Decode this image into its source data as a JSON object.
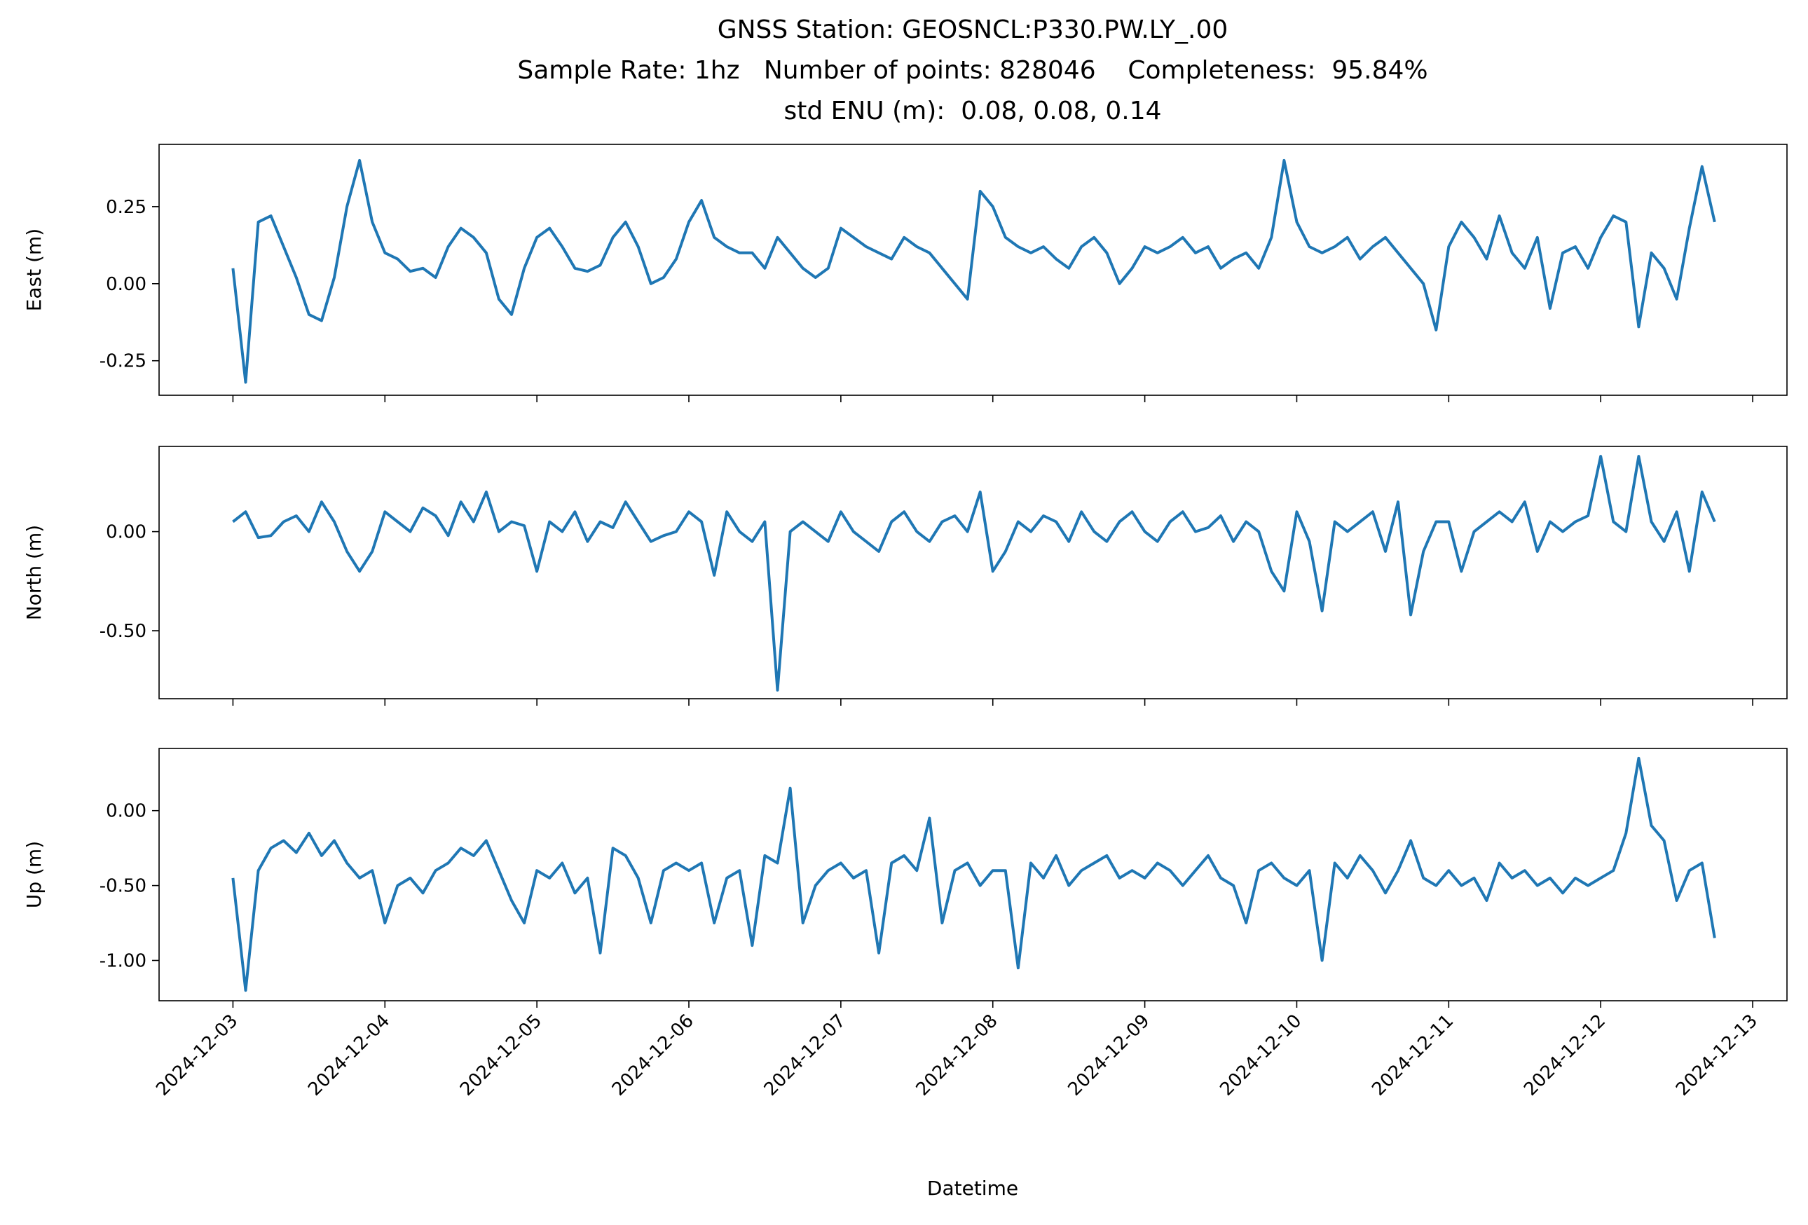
{
  "chart_data": {
    "type": "line",
    "title": [
      "GNSS Station: GEOSNCL:P330.PW.LY_.00",
      "Sample Rate: 1hz   Number of points: 828046    Completeness:  95.84%",
      "std ENU (m):  0.08, 0.08, 0.14"
    ],
    "xlabel": "Datetime",
    "xlim": [
      "2024-12-02T12:20",
      "2024-12-13T05:25"
    ],
    "xticks": [
      "2024-12-03",
      "2024-12-04",
      "2024-12-05",
      "2024-12-06",
      "2024-12-07",
      "2024-12-08",
      "2024-12-09",
      "2024-12-10",
      "2024-12-11",
      "2024-12-12",
      "2024-12-13"
    ],
    "x": [
      "2024-12-03T00:00",
      "2024-12-03T02:00",
      "2024-12-03T04:00",
      "2024-12-03T06:00",
      "2024-12-03T08:00",
      "2024-12-03T10:00",
      "2024-12-03T12:00",
      "2024-12-03T14:00",
      "2024-12-03T16:00",
      "2024-12-03T18:00",
      "2024-12-03T20:00",
      "2024-12-03T22:00",
      "2024-12-04T00:00",
      "2024-12-04T02:00",
      "2024-12-04T04:00",
      "2024-12-04T06:00",
      "2024-12-04T08:00",
      "2024-12-04T10:00",
      "2024-12-04T12:00",
      "2024-12-04T14:00",
      "2024-12-04T16:00",
      "2024-12-04T18:00",
      "2024-12-04T20:00",
      "2024-12-04T22:00",
      "2024-12-05T00:00",
      "2024-12-05T02:00",
      "2024-12-05T04:00",
      "2024-12-05T06:00",
      "2024-12-05T08:00",
      "2024-12-05T10:00",
      "2024-12-05T12:00",
      "2024-12-05T14:00",
      "2024-12-05T16:00",
      "2024-12-05T18:00",
      "2024-12-05T20:00",
      "2024-12-05T22:00",
      "2024-12-06T00:00",
      "2024-12-06T02:00",
      "2024-12-06T04:00",
      "2024-12-06T06:00",
      "2024-12-06T08:00",
      "2024-12-06T10:00",
      "2024-12-06T12:00",
      "2024-12-06T14:00",
      "2024-12-06T16:00",
      "2024-12-06T18:00",
      "2024-12-06T20:00",
      "2024-12-06T22:00",
      "2024-12-07T00:00",
      "2024-12-07T02:00",
      "2024-12-07T04:00",
      "2024-12-07T06:00",
      "2024-12-07T08:00",
      "2024-12-07T10:00",
      "2024-12-07T12:00",
      "2024-12-07T14:00",
      "2024-12-07T16:00",
      "2024-12-07T18:00",
      "2024-12-07T20:00",
      "2024-12-07T22:00",
      "2024-12-08T00:00",
      "2024-12-08T02:00",
      "2024-12-08T04:00",
      "2024-12-08T06:00",
      "2024-12-08T08:00",
      "2024-12-08T10:00",
      "2024-12-08T12:00",
      "2024-12-08T14:00",
      "2024-12-08T16:00",
      "2024-12-08T18:00",
      "2024-12-08T20:00",
      "2024-12-08T22:00",
      "2024-12-09T00:00",
      "2024-12-09T02:00",
      "2024-12-09T04:00",
      "2024-12-09T06:00",
      "2024-12-09T08:00",
      "2024-12-09T10:00",
      "2024-12-09T12:00",
      "2024-12-09T14:00",
      "2024-12-09T16:00",
      "2024-12-09T18:00",
      "2024-12-09T20:00",
      "2024-12-09T22:00",
      "2024-12-10T00:00",
      "2024-12-10T02:00",
      "2024-12-10T04:00",
      "2024-12-10T06:00",
      "2024-12-10T08:00",
      "2024-12-10T10:00",
      "2024-12-10T12:00",
      "2024-12-10T14:00",
      "2024-12-10T16:00",
      "2024-12-10T18:00",
      "2024-12-10T20:00",
      "2024-12-10T22:00",
      "2024-12-11T00:00",
      "2024-12-11T02:00",
      "2024-12-11T04:00",
      "2024-12-11T06:00",
      "2024-12-11T08:00",
      "2024-12-11T10:00",
      "2024-12-11T12:00",
      "2024-12-11T14:00",
      "2024-12-11T16:00",
      "2024-12-11T18:00",
      "2024-12-11T20:00",
      "2024-12-11T22:00",
      "2024-12-12T00:00",
      "2024-12-12T02:00",
      "2024-12-12T04:00",
      "2024-12-12T06:00",
      "2024-12-12T08:00",
      "2024-12-12T10:00",
      "2024-12-12T12:00",
      "2024-12-12T14:00",
      "2024-12-12T16:00",
      "2024-12-12T18:00"
    ],
    "panels": [
      {
        "ylabel": "East (m)",
        "ylim": [
          -0.362,
          0.452
        ],
        "yticks": [
          {
            "value": -0.25,
            "label": "-0.25"
          },
          {
            "value": 0,
            "label": "0.00"
          },
          {
            "value": 0.25,
            "label": "0.25"
          }
        ],
        "series": [
          {
            "color": "#1f77b4",
            "values": [
              0.05,
              -0.32,
              0.2,
              0.22,
              0.12,
              0.02,
              -0.1,
              -0.12,
              0.02,
              0.25,
              0.4,
              0.2,
              0.1,
              0.08,
              0.04,
              0.05,
              0.02,
              0.12,
              0.18,
              0.15,
              0.1,
              -0.05,
              -0.1,
              0.05,
              0.15,
              0.18,
              0.12,
              0.05,
              0.04,
              0.06,
              0.15,
              0.2,
              0.12,
              0.0,
              0.02,
              0.08,
              0.2,
              0.27,
              0.15,
              0.12,
              0.1,
              0.1,
              0.05,
              0.15,
              0.1,
              0.05,
              0.02,
              0.05,
              0.18,
              0.15,
              0.12,
              0.1,
              0.08,
              0.15,
              0.12,
              0.1,
              0.05,
              0.0,
              -0.05,
              0.3,
              0.25,
              0.15,
              0.12,
              0.1,
              0.12,
              0.08,
              0.05,
              0.12,
              0.15,
              0.1,
              0.0,
              0.05,
              0.12,
              0.1,
              0.12,
              0.15,
              0.1,
              0.12,
              0.05,
              0.08,
              0.1,
              0.05,
              0.15,
              0.4,
              0.2,
              0.12,
              0.1,
              0.12,
              0.15,
              0.08,
              0.12,
              0.15,
              0.1,
              0.05,
              0.0,
              -0.15,
              0.12,
              0.2,
              0.15,
              0.08,
              0.22,
              0.1,
              0.05,
              0.15,
              -0.08,
              0.1,
              0.12,
              0.05,
              0.15,
              0.22,
              0.2,
              -0.14,
              0.1,
              0.05,
              -0.05,
              0.18,
              0.38,
              0.2
            ]
          }
        ]
      },
      {
        "ylabel": "North (m)",
        "ylim": [
          -0.843,
          0.43
        ],
        "yticks": [
          {
            "value": -0.5,
            "label": "-0.50"
          },
          {
            "value": 0,
            "label": "0.00"
          }
        ],
        "series": [
          {
            "color": "#1f77b4",
            "values": [
              0.05,
              0.1,
              -0.03,
              -0.02,
              0.05,
              0.08,
              0.0,
              0.15,
              0.05,
              -0.1,
              -0.2,
              -0.1,
              0.1,
              0.05,
              0.0,
              0.12,
              0.08,
              -0.02,
              0.15,
              0.05,
              0.2,
              0.0,
              0.05,
              0.03,
              -0.2,
              0.05,
              0.0,
              0.1,
              -0.05,
              0.05,
              0.02,
              0.15,
              0.05,
              -0.05,
              -0.02,
              0.0,
              0.1,
              0.05,
              -0.22,
              0.1,
              0.0,
              -0.05,
              0.05,
              -0.8,
              0.0,
              0.05,
              0.0,
              -0.05,
              0.1,
              0.0,
              -0.05,
              -0.1,
              0.05,
              0.1,
              0.0,
              -0.05,
              0.05,
              0.08,
              0.0,
              0.2,
              -0.2,
              -0.1,
              0.05,
              0.0,
              0.08,
              0.05,
              -0.05,
              0.1,
              0.0,
              -0.05,
              0.05,
              0.1,
              0.0,
              -0.05,
              0.05,
              0.1,
              0.0,
              0.02,
              0.08,
              -0.05,
              0.05,
              0.0,
              -0.2,
              -0.3,
              0.1,
              -0.05,
              -0.4,
              0.05,
              0.0,
              0.05,
              0.1,
              -0.1,
              0.15,
              -0.42,
              -0.1,
              0.05,
              0.05,
              -0.2,
              0.0,
              0.05,
              0.1,
              0.05,
              0.15,
              -0.1,
              0.05,
              0.0,
              0.05,
              0.08,
              0.38,
              0.05,
              0.0,
              0.38,
              0.05,
              -0.05,
              0.1,
              -0.2,
              0.2,
              0.05
            ]
          }
        ]
      },
      {
        "ylabel": "Up (m)",
        "ylim": [
          -1.269,
          0.415
        ],
        "yticks": [
          {
            "value": -1,
            "label": "-1.00"
          },
          {
            "value": -0.5,
            "label": "-0.50"
          },
          {
            "value": 0,
            "label": "0.00"
          }
        ],
        "series": [
          {
            "color": "#1f77b4",
            "values": [
              -0.45,
              -1.2,
              -0.4,
              -0.25,
              -0.2,
              -0.28,
              -0.15,
              -0.3,
              -0.2,
              -0.35,
              -0.45,
              -0.4,
              -0.75,
              -0.5,
              -0.45,
              -0.55,
              -0.4,
              -0.35,
              -0.25,
              -0.3,
              -0.2,
              -0.4,
              -0.6,
              -0.75,
              -0.4,
              -0.45,
              -0.35,
              -0.55,
              -0.45,
              -0.95,
              -0.25,
              -0.3,
              -0.45,
              -0.75,
              -0.4,
              -0.35,
              -0.4,
              -0.35,
              -0.75,
              -0.45,
              -0.4,
              -0.9,
              -0.3,
              -0.35,
              0.15,
              -0.75,
              -0.5,
              -0.4,
              -0.35,
              -0.45,
              -0.4,
              -0.95,
              -0.35,
              -0.3,
              -0.4,
              -0.05,
              -0.75,
              -0.4,
              -0.35,
              -0.5,
              -0.4,
              -0.4,
              -1.05,
              -0.35,
              -0.45,
              -0.3,
              -0.5,
              -0.4,
              -0.35,
              -0.3,
              -0.45,
              -0.4,
              -0.45,
              -0.35,
              -0.4,
              -0.5,
              -0.4,
              -0.3,
              -0.45,
              -0.5,
              -0.75,
              -0.4,
              -0.35,
              -0.45,
              -0.5,
              -0.4,
              -1.0,
              -0.35,
              -0.45,
              -0.3,
              -0.4,
              -0.55,
              -0.4,
              -0.2,
              -0.45,
              -0.5,
              -0.4,
              -0.5,
              -0.45,
              -0.6,
              -0.35,
              -0.45,
              -0.4,
              -0.5,
              -0.45,
              -0.55,
              -0.45,
              -0.5,
              -0.45,
              -0.4,
              -0.15,
              0.35,
              -0.1,
              -0.2,
              -0.6,
              -0.4,
              -0.35,
              -0.85
            ]
          }
        ]
      }
    ]
  }
}
